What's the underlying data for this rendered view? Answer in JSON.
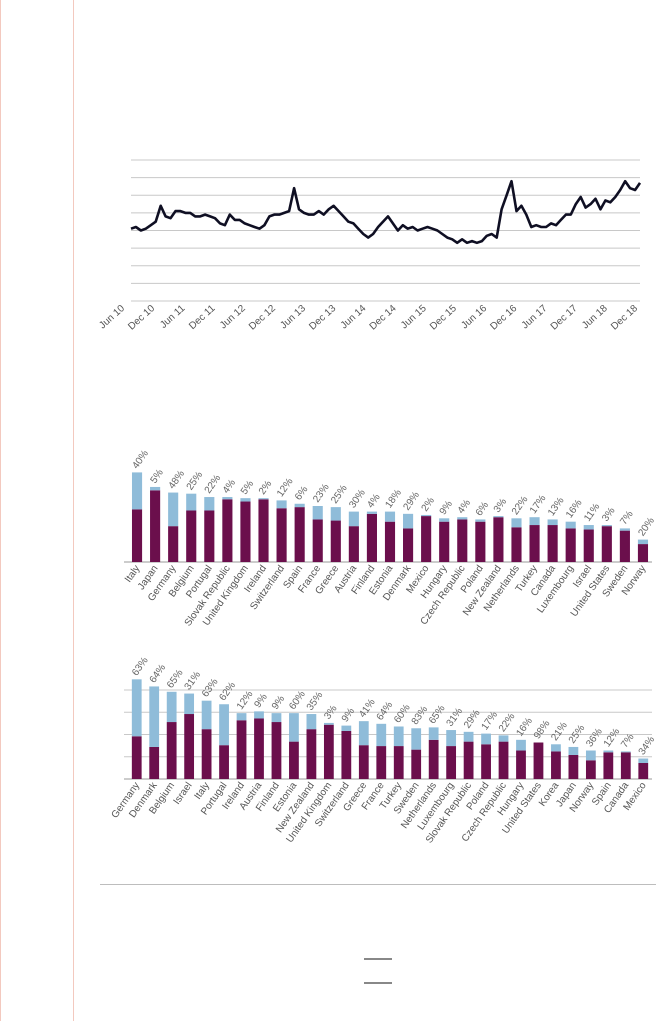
{
  "colors": {
    "line": "#0f0f23",
    "grid": "#c8c8c8",
    "bar_dark": "#6b0f4c",
    "bar_light": "#8fbcd9",
    "sidebar_border": "#f3c9bf"
  },
  "chart_data": [
    {
      "type": "line",
      "x_tick_labels": [
        "Jun 10",
        "Dec 10",
        "Jun 11",
        "Dec 11",
        "Jun 12",
        "Dec 12",
        "Jun 13",
        "Dec 13",
        "Jun 14",
        "Dec 14",
        "Jun 15",
        "Dec 15",
        "Jun 16",
        "Dec 16",
        "Jun 17",
        "Dec 17",
        "Jun 18",
        "Dec 18"
      ],
      "ylim": [
        0,
        8
      ],
      "grid": true,
      "series": [
        {
          "values": [
            4.1,
            4.2,
            4.0,
            4.1,
            4.3,
            4.5,
            5.4,
            4.8,
            4.7,
            5.1,
            5.1,
            5.0,
            5.0,
            4.8,
            4.8,
            4.9,
            4.8,
            4.7,
            4.4,
            4.3,
            4.9,
            4.6,
            4.6,
            4.4,
            4.3,
            4.2,
            4.1,
            4.3,
            4.8,
            4.9,
            4.9,
            5.0,
            5.1,
            6.4,
            5.2,
            5.0,
            4.9,
            4.9,
            5.1,
            4.9,
            5.2,
            5.4,
            5.1,
            4.8,
            4.5,
            4.4,
            4.1,
            3.8,
            3.6,
            3.8,
            4.2,
            4.5,
            4.8,
            4.4,
            4.0,
            4.3,
            4.1,
            4.2,
            4.0,
            4.1,
            4.2,
            4.1,
            4.0,
            3.8,
            3.6,
            3.5,
            3.3,
            3.5,
            3.3,
            3.4,
            3.3,
            3.4,
            3.7,
            3.8,
            3.6,
            5.2,
            6.0,
            6.8,
            5.1,
            5.4,
            4.9,
            4.2,
            4.3,
            4.2,
            4.2,
            4.4,
            4.3,
            4.6,
            4.9,
            4.9,
            5.5,
            5.9,
            5.3,
            5.5,
            5.8,
            5.2,
            5.7,
            5.6,
            5.9,
            6.3,
            6.8,
            6.4,
            6.3,
            6.7
          ]
        }
      ]
    },
    {
      "type": "bar",
      "stacked": true,
      "categories": [
        "Italy",
        "Japan",
        "Germany",
        "Belgium",
        "Portugal",
        "Slovak Republic",
        "United Kingdom",
        "Ireland",
        "Switzerland",
        "Spain",
        "France",
        "Greece",
        "Austria",
        "Finland",
        "Estonia",
        "Denmark",
        "Mexico",
        "Hungary",
        "Czech Republic",
        "Poland",
        "New Zealand",
        "Netherlands",
        "Turkey",
        "Canada",
        "Luxembourg",
        "Israel",
        "United States",
        "Sweden",
        "Norway"
      ],
      "series": [
        {
          "values": [
            4.7,
            6.4,
            3.2,
            4.6,
            4.6,
            5.6,
            5.4,
            5.6,
            4.8,
            4.9,
            3.8,
            3.7,
            3.2,
            4.3,
            3.6,
            3.0,
            4.1,
            3.6,
            3.8,
            3.6,
            4.0,
            3.1,
            3.3,
            3.3,
            3.0,
            2.9,
            3.2,
            2.8,
            1.6
          ]
        },
        {
          "values": [
            3.3,
            0.3,
            3.0,
            1.5,
            1.2,
            0.2,
            0.3,
            0.1,
            0.7,
            0.3,
            1.2,
            1.2,
            1.3,
            0.2,
            0.9,
            1.3,
            0.1,
            0.3,
            0.2,
            0.2,
            0.1,
            0.8,
            0.7,
            0.5,
            0.6,
            0.4,
            0.1,
            0.2,
            0.4
          ]
        }
      ],
      "pct_labels": [
        "40%",
        "5%",
        "48%",
        "25%",
        "22%",
        "4%",
        "5%",
        "2%",
        "12%",
        "6%",
        "23%",
        "25%",
        "30%",
        "4%",
        "18%",
        "29%",
        "2%",
        "9%",
        "4%",
        "6%",
        "3%",
        "22%",
        "17%",
        "13%",
        "16%",
        "11%",
        "3%",
        "7%",
        "20%"
      ]
    },
    {
      "type": "bar",
      "stacked": true,
      "categories": [
        "Germany",
        "Denmark",
        "Belgium",
        "Israel",
        "Italy",
        "Portugal",
        "Ireland",
        "Austria",
        "Finland",
        "Estonia",
        "New Zealand",
        "United Kingdom",
        "Switzerland",
        "Greece",
        "France",
        "Turkey",
        "Sweden",
        "Netherlands",
        "Luxembourg",
        "Slovak Republic",
        "Poland",
        "Czech Republic",
        "Hungary",
        "United States",
        "Korea",
        "Japan",
        "Norway",
        "Spain",
        "Canada",
        "Mexico"
      ],
      "series": [
        {
          "values": [
            4.8,
            3.6,
            6.4,
            7.3,
            5.6,
            3.8,
            6.6,
            6.8,
            6.4,
            4.2,
            5.6,
            6.1,
            5.4,
            3.8,
            3.7,
            3.7,
            3.3,
            4.4,
            3.7,
            4.2,
            3.9,
            4.2,
            3.2,
            4.1,
            3.1,
            2.7,
            2.1,
            3.0,
            3.0,
            1.8
          ]
        },
        {
          "values": [
            6.4,
            6.8,
            3.4,
            2.3,
            3.2,
            4.6,
            0.8,
            0.8,
            1.0,
            3.2,
            1.7,
            0.2,
            0.6,
            2.7,
            2.5,
            2.2,
            2.4,
            1.4,
            1.8,
            1.1,
            1.2,
            0.7,
            1.2,
            0.0,
            0.8,
            0.9,
            1.1,
            0.2,
            0.1,
            0.5
          ]
        }
      ],
      "pct_labels": [
        "63%",
        "64%",
        "65%",
        "31%",
        "63%",
        "62%",
        "12%",
        "9%",
        "9%",
        "60%",
        "35%",
        "3%",
        "9%",
        "41%",
        "64%",
        "60%",
        "83%",
        "65%",
        "31%",
        "29%",
        "17%",
        "22%",
        "16%",
        "98%",
        "21%",
        "25%",
        "36%",
        "12%",
        "7%",
        "34%"
      ]
    }
  ]
}
